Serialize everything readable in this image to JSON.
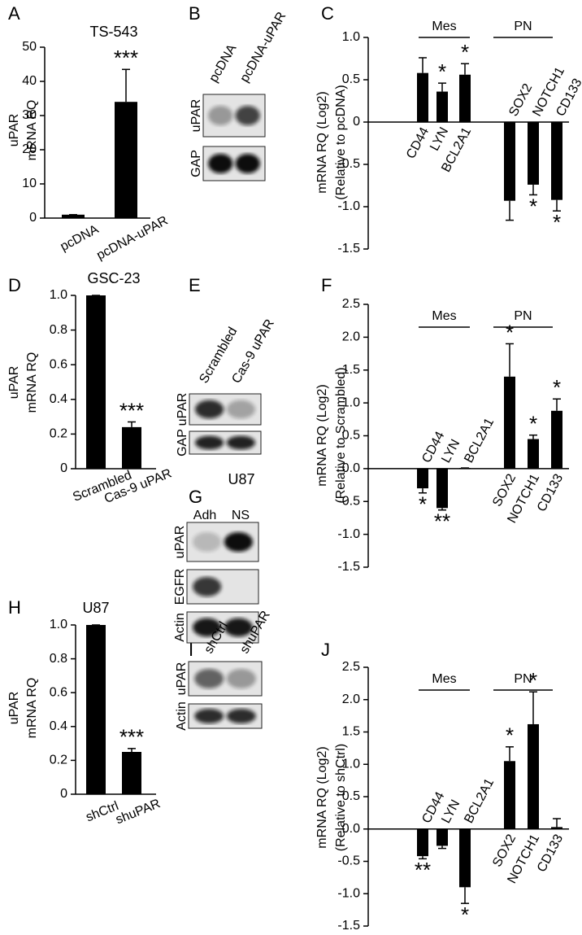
{
  "chart_data": [
    {
      "type": "bar",
      "panel": "A",
      "title": "TS-543",
      "ylabel": [
        "uPAR",
        "mRNA RQ"
      ],
      "categories": [
        "pcDNA",
        "pcDNA-uPAR"
      ],
      "values": [
        1,
        34
      ],
      "errors": [
        0,
        9.5
      ],
      "stars": [
        null,
        "***"
      ],
      "color": "#000000",
      "ylim": [
        0,
        50
      ],
      "yticks": [
        0,
        10,
        20,
        30,
        40,
        50
      ]
    },
    {
      "type": "bar",
      "panel": "C",
      "ylabel": [
        "mRNA RQ (Log2)",
        "(Relative to pcDNA)"
      ],
      "groups": [
        "Mes",
        "PN"
      ],
      "categories": [
        "CD44",
        "LYN",
        "BCL2A1",
        "SOX2",
        "NOTCH1",
        "CD133"
      ],
      "values": [
        0.58,
        0.36,
        0.56,
        -0.93,
        -0.74,
        -0.92
      ],
      "errors": [
        0.18,
        0.1,
        0.13,
        0.23,
        0.12,
        0.13
      ],
      "stars": [
        null,
        "*",
        "*",
        null,
        "*",
        "*"
      ],
      "color": "#000000",
      "ylim": [
        -1.5,
        1.0
      ],
      "yticks": [
        {
          "value": -1.5,
          "label": "-1.5"
        },
        {
          "value": -1.0,
          "label": "-1.0"
        },
        -0.5,
        0,
        0.5,
        {
          "value": 1.0,
          "label": "1.0"
        }
      ]
    },
    {
      "type": "bar",
      "panel": "D",
      "title": "GSC-23",
      "ylabel": [
        "uPAR",
        "mRNA RQ"
      ],
      "categories": [
        "Scrambled",
        "Cas-9 uPAR"
      ],
      "values": [
        1.0,
        0.24
      ],
      "errors": [
        0,
        0.03
      ],
      "stars": [
        null,
        "***"
      ],
      "color": "#000000",
      "ylim": [
        0,
        1.0
      ],
      "yticks": [
        0,
        0.2,
        0.4,
        0.6,
        0.8,
        {
          "value": 1.0,
          "label": "1.0"
        }
      ]
    },
    {
      "type": "bar",
      "panel": "F",
      "ylabel": [
        "mRNA RQ (Log2)",
        "(Relative to Scrambled)"
      ],
      "groups": [
        "Mes",
        "PN"
      ],
      "categories": [
        "CD44",
        "LYN",
        "BCL2A1",
        "SOX2",
        "NOTCH1",
        "CD133"
      ],
      "values": [
        -0.3,
        -0.6,
        0.01,
        1.4,
        0.45,
        0.88
      ],
      "errors": [
        0.07,
        0.03,
        0,
        0.5,
        0.06,
        0.18
      ],
      "stars": [
        "*",
        "**",
        null,
        "*",
        "*",
        "*"
      ],
      "color": "#000000",
      "ylim": [
        -1.5,
        2.5
      ],
      "yticks": [
        {
          "value": -1.5,
          "label": "-1.5"
        },
        {
          "value": -1.0,
          "label": "-1.0"
        },
        -0.5,
        {
          "value": 0,
          "label": "0.0"
        },
        0.5,
        {
          "value": 1.0,
          "label": "1.0"
        },
        1.5,
        {
          "value": 2.0,
          "label": "2.0"
        },
        2.5
      ]
    },
    {
      "type": "bar",
      "panel": "H",
      "title": "U87",
      "ylabel": [
        "uPAR",
        "mRNA RQ"
      ],
      "categories": [
        "shCtrl",
        "shuPAR"
      ],
      "values": [
        1.0,
        0.25
      ],
      "errors": [
        0,
        0.02
      ],
      "stars": [
        null,
        "***"
      ],
      "color": "#000000",
      "ylim": [
        0,
        1.0
      ],
      "yticks": [
        0,
        0.2,
        0.4,
        0.6,
        0.8,
        {
          "value": 1.0,
          "label": "1.0"
        }
      ]
    },
    {
      "type": "bar",
      "panel": "J",
      "ylabel": [
        "mRNA RQ (Log2)",
        "(Relative to shCtrl)"
      ],
      "groups": [
        "Mes",
        "PN"
      ],
      "categories": [
        "CD44",
        "LYN",
        "BCL2A1",
        "SOX2",
        "NOTCH1",
        "CD133"
      ],
      "values": [
        -0.42,
        -0.26,
        -0.9,
        1.05,
        1.62,
        0.03
      ],
      "errors": [
        0.04,
        0.04,
        0.25,
        0.22,
        0.5,
        0.13
      ],
      "stars": [
        "**",
        null,
        "*",
        "*",
        "*",
        null
      ],
      "color": "#000000",
      "ylim": [
        -1.5,
        2.5
      ],
      "yticks": [
        {
          "value": -1.5,
          "label": "-1.5"
        },
        {
          "value": -1.0,
          "label": "-1.0"
        },
        -0.5,
        {
          "value": 0,
          "label": "0.0"
        },
        0.5,
        {
          "value": 1.0,
          "label": "1.0"
        },
        1.5,
        {
          "value": 2.0,
          "label": "2.0"
        },
        2.5
      ]
    }
  ],
  "blots": [
    {
      "panel": "B",
      "lanes": [
        "pcDNA",
        "pcDNA-uPAR"
      ],
      "rows": [
        "uPAR",
        "GAP"
      ]
    },
    {
      "panel": "E",
      "lanes": [
        "Scrambled",
        "Cas-9 uPAR"
      ],
      "rows": [
        "uPAR",
        "GAP"
      ]
    },
    {
      "panel": "G",
      "title": "U87",
      "lanes": [
        "Adh",
        "NS"
      ],
      "rows": [
        "uPAR",
        "EGFR",
        "Actin"
      ]
    },
    {
      "panel": "I",
      "lanes": [
        "shCtrl",
        "shuPAR"
      ],
      "rows": [
        "uPAR",
        "Actin"
      ]
    }
  ]
}
